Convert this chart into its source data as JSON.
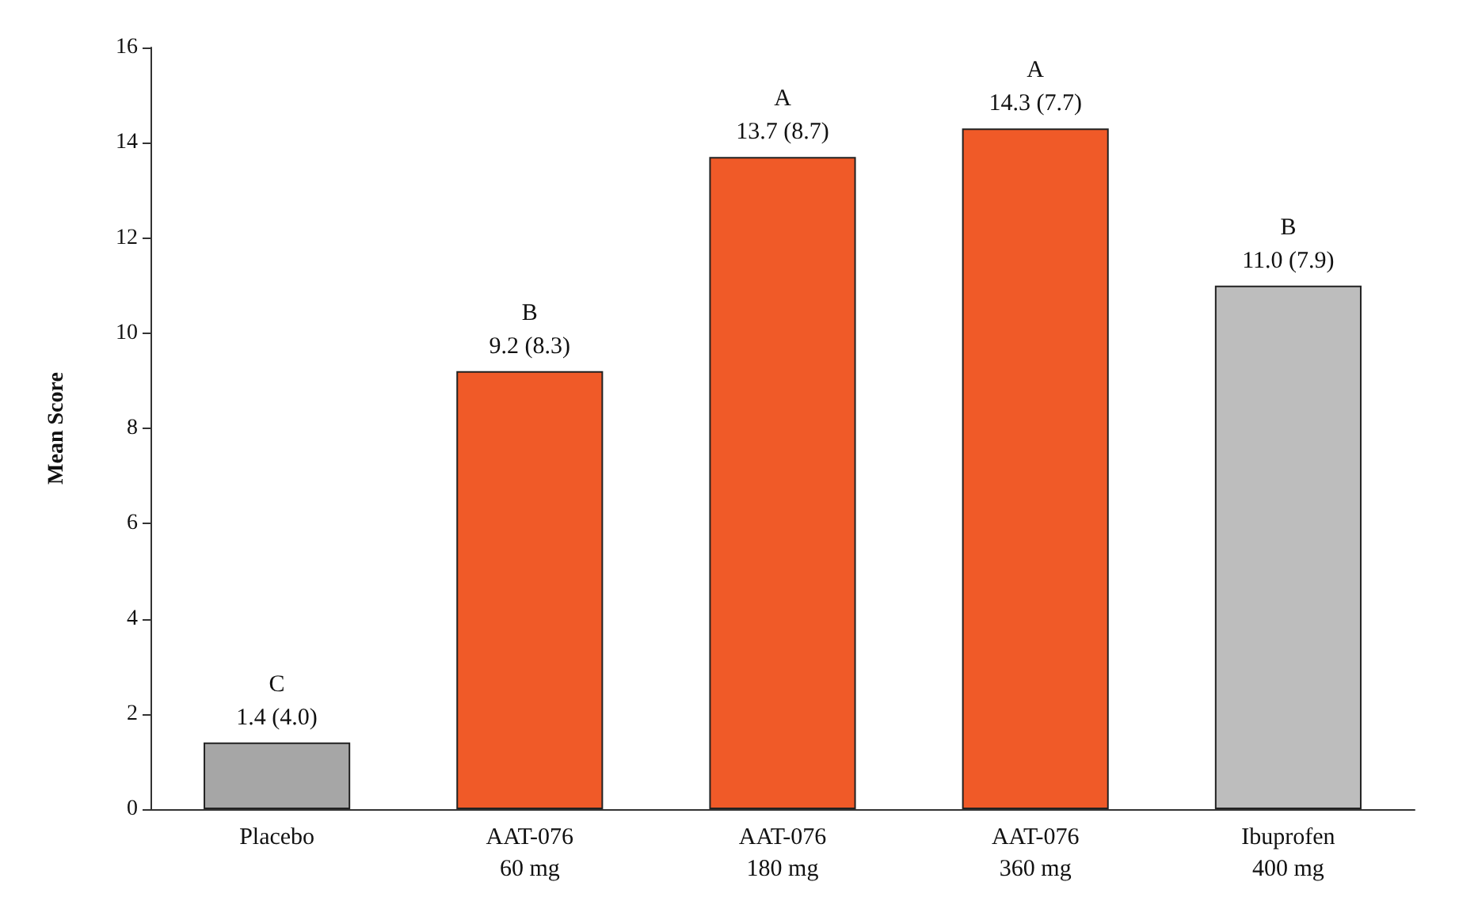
{
  "chart_data": {
    "type": "bar",
    "ylabel": "Mean Score",
    "categories": [
      "Placebo",
      "AAT-076\n60 mg",
      "AAT-076\n180 mg",
      "AAT-076\n360 mg",
      "Ibuprofen\n400 mg"
    ],
    "values": [
      1.4,
      9.2,
      13.7,
      14.3,
      11.0
    ],
    "colors": [
      "#a6a6a6",
      "#f05a28",
      "#f05a28",
      "#f05a28",
      "#bdbdbd"
    ],
    "value_labels": [
      "C\n1.4 (4.0)",
      "B\n9.2 (8.3)",
      "A\n13.7 (8.7)",
      "A\n14.3 (7.7)",
      "B\n11.0 (7.9)"
    ],
    "ylim": [
      0,
      16
    ],
    "yticks": [
      0,
      2,
      4,
      6,
      8,
      10,
      12,
      14,
      16
    ],
    "grid": false
  }
}
